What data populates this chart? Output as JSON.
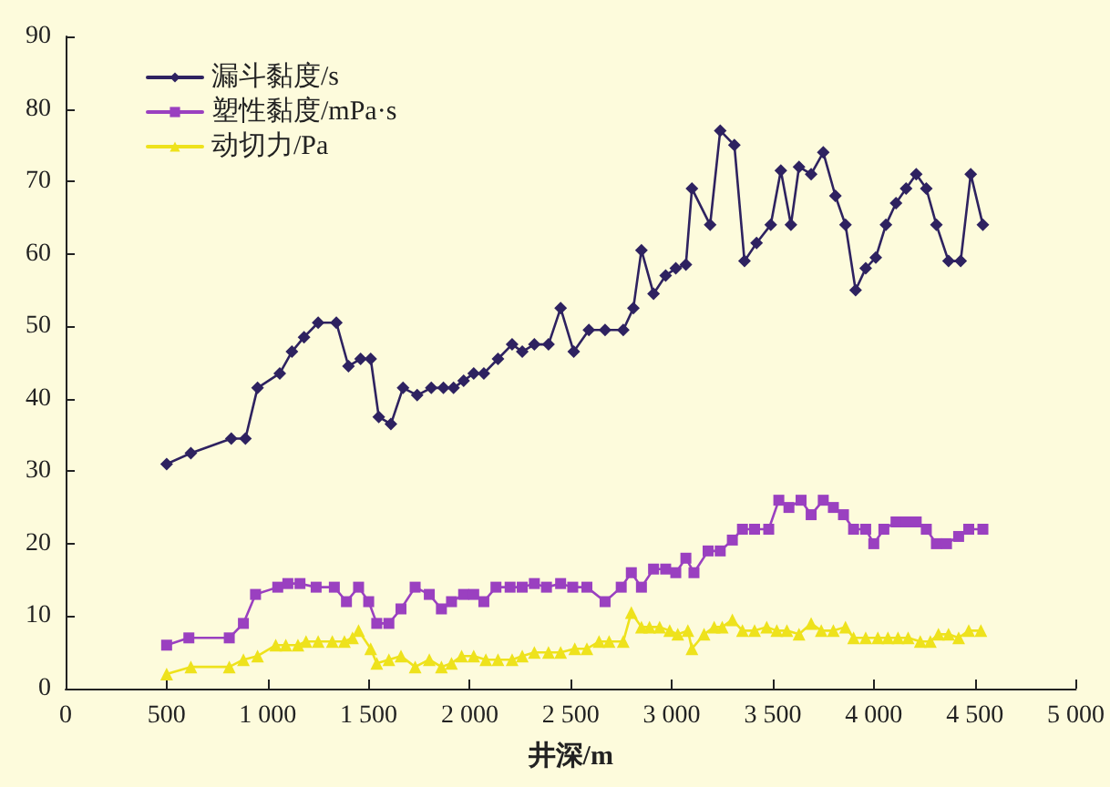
{
  "chart_data": {
    "type": "line",
    "xlabel": "井深/m",
    "legend": "top left",
    "grid": false,
    "line_style": "solid",
    "xlim": [
      0,
      5000
    ],
    "xticks": [
      0,
      500,
      {
        "value": 1000,
        "label": "1 000"
      },
      {
        "value": 1500,
        "label": "1 500"
      },
      {
        "value": 2000,
        "label": "2 000"
      },
      {
        "value": 2500,
        "label": "2 500"
      },
      {
        "value": 3000,
        "label": "3 000"
      },
      {
        "value": 3500,
        "label": "3 500"
      },
      {
        "value": 4000,
        "label": "4 000"
      },
      {
        "value": 4500,
        "label": "4 500"
      },
      {
        "value": 5000,
        "label": "5 000"
      }
    ],
    "ylim": [
      0,
      90
    ],
    "yticks": [
      0,
      10,
      20,
      30,
      40,
      50,
      60,
      70,
      80,
      90
    ],
    "series": [
      {
        "name": "漏斗黏度/s",
        "color": "#2e2260",
        "marker": "diamond",
        "x": [
          500,
          620,
          820,
          890,
          950,
          1060,
          1120,
          1180,
          1250,
          1340,
          1400,
          1460,
          1510,
          1550,
          1610,
          1670,
          1740,
          1810,
          1870,
          1920,
          1970,
          2020,
          2070,
          2140,
          2210,
          2260,
          2320,
          2390,
          2450,
          2515,
          2590,
          2670,
          2760,
          2810,
          2850,
          2910,
          2970,
          3020,
          3070,
          3100,
          3190,
          3240,
          3310,
          3360,
          3420,
          3490,
          3540,
          3590,
          3630,
          3690,
          3750,
          3810,
          3860,
          3910,
          3960,
          4010,
          4060,
          4110,
          4160,
          4210,
          4260,
          4310,
          4370,
          4430,
          4480,
          4540
        ],
        "values": [
          31,
          32.5,
          34.5,
          34.5,
          41.5,
          43.5,
          46.5,
          48.5,
          50.5,
          50.5,
          44.5,
          45.5,
          45.5,
          37.5,
          36.5,
          41.5,
          40.5,
          41.5,
          41.5,
          41.5,
          42.5,
          43.5,
          43.5,
          45.5,
          47.5,
          46.5,
          47.5,
          47.5,
          52.5,
          46.5,
          49.5,
          49.5,
          49.5,
          52.5,
          60.5,
          54.5,
          57,
          58,
          58.5,
          69,
          64,
          77,
          75,
          59,
          61.5,
          64,
          71.5,
          64,
          72,
          71,
          74,
          68,
          64,
          55,
          58,
          59.5,
          64,
          67,
          69,
          71,
          69,
          64,
          59,
          59,
          71,
          64
        ]
      },
      {
        "name": "塑性黏度/mPa·s",
        "color": "#9a40c0",
        "marker": "square",
        "x": [
          500,
          610,
          810,
          880,
          940,
          1050,
          1100,
          1160,
          1240,
          1330,
          1390,
          1450,
          1500,
          1540,
          1600,
          1660,
          1730,
          1800,
          1860,
          1910,
          1970,
          2020,
          2070,
          2130,
          2200,
          2260,
          2320,
          2380,
          2450,
          2510,
          2580,
          2670,
          2750,
          2800,
          2850,
          2910,
          2970,
          3020,
          3070,
          3110,
          3180,
          3240,
          3300,
          3350,
          3410,
          3480,
          3530,
          3580,
          3640,
          3690,
          3750,
          3800,
          3850,
          3900,
          3960,
          4000,
          4050,
          4110,
          4160,
          4210,
          4260,
          4310,
          4360,
          4420,
          4470,
          4540
        ],
        "values": [
          6,
          7,
          7,
          9,
          13,
          14,
          14.5,
          14.5,
          14,
          14,
          12,
          14,
          12,
          9,
          9,
          11,
          14,
          13,
          11,
          12,
          13,
          13,
          12,
          14,
          14,
          14,
          14.5,
          14,
          14.5,
          14,
          14,
          12,
          14,
          16,
          14,
          16.5,
          16.5,
          16,
          18,
          16,
          19,
          19,
          20.5,
          22,
          22,
          22,
          26,
          25,
          26,
          24,
          26,
          25,
          24,
          22,
          22,
          20,
          22,
          23,
          23,
          23,
          22,
          20,
          20,
          21,
          22,
          22
        ]
      },
      {
        "name": "动切力/Pa",
        "color": "#eee21c",
        "marker": "triangle",
        "x": [
          500,
          620,
          810,
          880,
          950,
          1040,
          1090,
          1150,
          1190,
          1250,
          1320,
          1380,
          1420,
          1450,
          1510,
          1540,
          1600,
          1660,
          1730,
          1800,
          1860,
          1910,
          1960,
          2020,
          2080,
          2140,
          2210,
          2260,
          2320,
          2390,
          2450,
          2520,
          2580,
          2640,
          2690,
          2760,
          2800,
          2850,
          2890,
          2940,
          2990,
          3030,
          3080,
          3100,
          3160,
          3210,
          3250,
          3300,
          3350,
          3410,
          3470,
          3520,
          3570,
          3630,
          3690,
          3740,
          3800,
          3860,
          3900,
          3960,
          4020,
          4070,
          4120,
          4170,
          4230,
          4280,
          4320,
          4370,
          4420,
          4470,
          4530
        ],
        "values": [
          2,
          3,
          3,
          4,
          4.5,
          6,
          6,
          6,
          6.5,
          6.5,
          6.5,
          6.5,
          7,
          8,
          5.5,
          3.5,
          4,
          4.5,
          3,
          4,
          3,
          3.5,
          4.5,
          4.5,
          4,
          4,
          4,
          4.5,
          5,
          5,
          5,
          5.5,
          5.5,
          6.5,
          6.5,
          6.5,
          10.5,
          8.5,
          8.5,
          8.5,
          8,
          7.5,
          8,
          5.5,
          7.5,
          8.5,
          8.5,
          9.5,
          8,
          8,
          8.5,
          8,
          8,
          7.5,
          9,
          8,
          8,
          8.5,
          7,
          7,
          7,
          7,
          7,
          7,
          6.5,
          6.5,
          7.5,
          7.5,
          7,
          8,
          8
        ]
      }
    ]
  }
}
